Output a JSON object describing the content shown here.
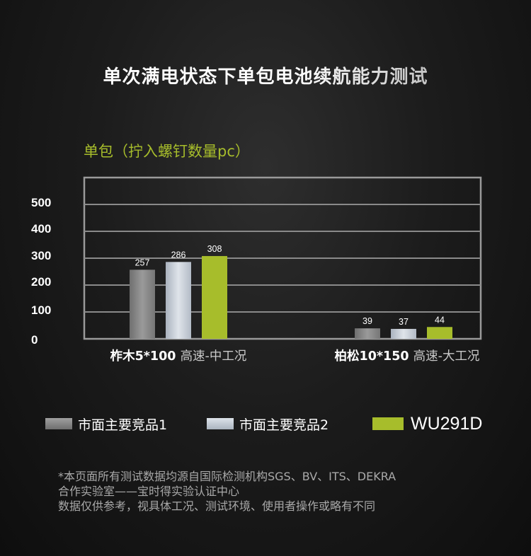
{
  "title": "单次满电状态下单包电池续航能力测试",
  "subtitle": "单包（拧入螺钉数量pc）",
  "chart_data": {
    "type": "bar",
    "categories": [
      "柞木5*100 高速-中工况",
      "柏松10*150 高速-大工况"
    ],
    "series": [
      {
        "name": "市面主要竞品1",
        "values": [
          257,
          39
        ],
        "color": "#8b8b8b"
      },
      {
        "name": "市面主要竞品2",
        "values": [
          286,
          37
        ],
        "color": "#c3cbd6"
      },
      {
        "name": "WU291D",
        "values": [
          308,
          44
        ],
        "color": "#a7bd2b"
      }
    ],
    "yticks": [
      "0",
      "100",
      "200",
      "300",
      "400",
      "500"
    ],
    "ylim": [
      0,
      500
    ],
    "grid": true,
    "legend": "bottom"
  },
  "legend": [
    {
      "label": "市面主要竞品1",
      "color": "#8b8b8b"
    },
    {
      "label": "市面主要竞品2",
      "color": "#c3cbd6"
    },
    {
      "label": "WU291D",
      "color": "#a7bd2b"
    }
  ],
  "footnote": [
    "*本页面所有测试数据均源自国际检测机构SGS、BV、ITS、DEKRA",
    "合作实验室——宝时得实验认证中心",
    "数据仅供参考，视具体工况、测试环境、使用者操作或略有不同"
  ]
}
